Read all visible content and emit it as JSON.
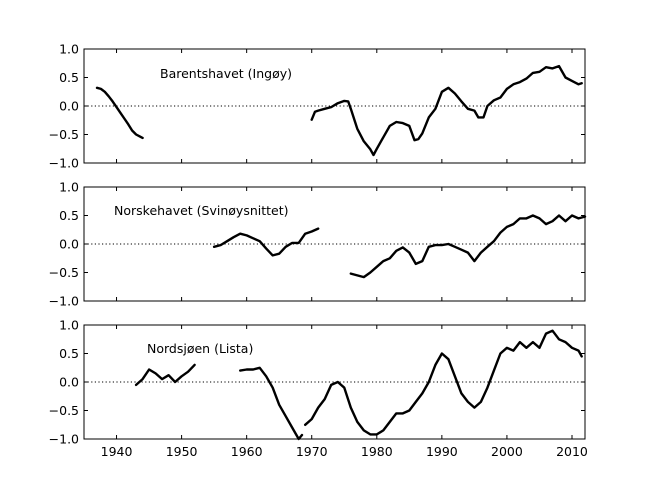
{
  "chart_data": [
    {
      "type": "line",
      "title": "",
      "annotation": "Barentshavet (Ingøy)",
      "xlabel": "",
      "ylabel": "",
      "xlim": [
        1935,
        2012
      ],
      "ylim": [
        -1.0,
        1.0
      ],
      "yticks": [
        "1.0",
        "0.5",
        "0.0",
        "−0.5",
        "−1.0"
      ],
      "xticks": [],
      "reference_line": 0,
      "series": [
        {
          "segments": [
            [
              [
                1937.0,
                0.32
              ],
              [
                1937.6,
                0.3
              ],
              [
                1938.2,
                0.25
              ],
              [
                1938.8,
                0.17
              ],
              [
                1939.4,
                0.08
              ],
              [
                1940.0,
                -0.02
              ],
              [
                1940.6,
                -0.12
              ],
              [
                1941.2,
                -0.22
              ],
              [
                1941.8,
                -0.32
              ],
              [
                1942.4,
                -0.43
              ],
              [
                1943.0,
                -0.5
              ],
              [
                1943.5,
                -0.53
              ],
              [
                1944.0,
                -0.56
              ]
            ],
            [
              [
                1970.0,
                -0.24
              ],
              [
                1970.5,
                -0.1
              ],
              [
                1971.0,
                -0.08
              ],
              [
                1972.0,
                -0.05
              ],
              [
                1973.0,
                -0.02
              ],
              [
                1974.0,
                0.05
              ],
              [
                1975.0,
                0.09
              ],
              [
                1975.6,
                0.08
              ],
              [
                1976.0,
                -0.05
              ],
              [
                1977.0,
                -0.4
              ],
              [
                1978.0,
                -0.62
              ],
              [
                1979.0,
                -0.76
              ],
              [
                1979.5,
                -0.86
              ],
              [
                1980.0,
                -0.75
              ],
              [
                1981.0,
                -0.55
              ],
              [
                1982.0,
                -0.35
              ],
              [
                1983.0,
                -0.28
              ],
              [
                1984.0,
                -0.3
              ],
              [
                1985.0,
                -0.35
              ],
              [
                1985.8,
                -0.6
              ],
              [
                1986.4,
                -0.58
              ],
              [
                1987.0,
                -0.48
              ],
              [
                1988.0,
                -0.2
              ],
              [
                1989.0,
                -0.05
              ],
              [
                1990.0,
                0.25
              ],
              [
                1991.0,
                0.32
              ],
              [
                1992.0,
                0.22
              ],
              [
                1993.0,
                0.08
              ],
              [
                1994.0,
                -0.05
              ],
              [
                1995.0,
                -0.08
              ],
              [
                1995.6,
                -0.2
              ],
              [
                1996.4,
                -0.2
              ],
              [
                1997.0,
                0.0
              ],
              [
                1998.0,
                0.1
              ],
              [
                1999.0,
                0.15
              ],
              [
                2000.0,
                0.3
              ],
              [
                2001.0,
                0.38
              ],
              [
                2002.0,
                0.42
              ],
              [
                2003.0,
                0.48
              ],
              [
                2004.0,
                0.58
              ],
              [
                2005.0,
                0.6
              ],
              [
                2006.0,
                0.68
              ],
              [
                2007.0,
                0.66
              ],
              [
                2008.0,
                0.7
              ],
              [
                2009.0,
                0.5
              ],
              [
                2010.0,
                0.44
              ],
              [
                2011.0,
                0.38
              ],
              [
                2011.5,
                0.4
              ]
            ]
          ]
        }
      ]
    },
    {
      "type": "line",
      "title": "",
      "annotation": "Norskehavet (Svinøysnittet)",
      "xlabel": "",
      "ylabel": "",
      "xlim": [
        1935,
        2012
      ],
      "ylim": [
        -1.0,
        1.0
      ],
      "yticks": [
        "1.0",
        "0.5",
        "0.0",
        "−0.5",
        "−1.0"
      ],
      "xticks": [],
      "reference_line": 0,
      "series": [
        {
          "segments": [
            [
              [
                1955.0,
                -0.05
              ],
              [
                1956.0,
                -0.02
              ],
              [
                1957.0,
                0.05
              ],
              [
                1958.0,
                0.12
              ],
              [
                1959.0,
                0.18
              ],
              [
                1960.0,
                0.15
              ],
              [
                1961.0,
                0.1
              ],
              [
                1962.0,
                0.05
              ],
              [
                1963.0,
                -0.08
              ],
              [
                1964.0,
                -0.2
              ],
              [
                1965.0,
                -0.17
              ],
              [
                1966.0,
                -0.05
              ],
              [
                1967.0,
                0.02
              ],
              [
                1968.0,
                0.02
              ],
              [
                1969.0,
                0.18
              ],
              [
                1970.0,
                0.22
              ],
              [
                1971.0,
                0.27
              ]
            ],
            [
              [
                1976.0,
                -0.52
              ],
              [
                1977.0,
                -0.55
              ],
              [
                1978.0,
                -0.58
              ],
              [
                1979.0,
                -0.5
              ],
              [
                1980.0,
                -0.4
              ],
              [
                1981.0,
                -0.3
              ],
              [
                1982.0,
                -0.25
              ],
              [
                1983.0,
                -0.12
              ],
              [
                1984.0,
                -0.06
              ],
              [
                1985.0,
                -0.15
              ],
              [
                1986.0,
                -0.35
              ],
              [
                1987.0,
                -0.3
              ],
              [
                1988.0,
                -0.05
              ],
              [
                1989.0,
                -0.02
              ],
              [
                1990.0,
                -0.02
              ],
              [
                1991.0,
                0.0
              ],
              [
                1992.0,
                -0.05
              ],
              [
                1993.0,
                -0.1
              ],
              [
                1994.0,
                -0.15
              ],
              [
                1995.0,
                -0.3
              ],
              [
                1996.0,
                -0.15
              ],
              [
                1997.0,
                -0.05
              ],
              [
                1998.0,
                0.05
              ],
              [
                1999.0,
                0.2
              ],
              [
                2000.0,
                0.3
              ],
              [
                2001.0,
                0.35
              ],
              [
                2002.0,
                0.45
              ],
              [
                2003.0,
                0.45
              ],
              [
                2004.0,
                0.5
              ],
              [
                2005.0,
                0.45
              ],
              [
                2006.0,
                0.35
              ],
              [
                2007.0,
                0.4
              ],
              [
                2008.0,
                0.5
              ],
              [
                2009.0,
                0.4
              ],
              [
                2010.0,
                0.5
              ],
              [
                2011.0,
                0.45
              ],
              [
                2012.0,
                0.48
              ]
            ]
          ]
        }
      ]
    },
    {
      "type": "line",
      "title": "",
      "annotation": "Nordsjøen (Lista)",
      "xlabel": "",
      "ylabel": "",
      "xlim": [
        1935,
        2012
      ],
      "ylim": [
        -1.0,
        1.0
      ],
      "yticks": [
        "1.0",
        "0.5",
        "0.0",
        "−0.5",
        "−1.0"
      ],
      "xticks": [
        "1940",
        "1950",
        "1960",
        "1970",
        "1980",
        "1990",
        "2000",
        "2010"
      ],
      "reference_line": 0,
      "series": [
        {
          "segments": [
            [
              [
                1943.0,
                -0.05
              ],
              [
                1944.0,
                0.05
              ],
              [
                1945.0,
                0.22
              ],
              [
                1946.0,
                0.15
              ],
              [
                1947.0,
                0.05
              ],
              [
                1948.0,
                0.12
              ],
              [
                1949.0,
                0.0
              ],
              [
                1950.0,
                0.1
              ],
              [
                1951.0,
                0.18
              ],
              [
                1952.0,
                0.3
              ]
            ],
            [
              [
                1959.0,
                0.2
              ],
              [
                1960.0,
                0.22
              ],
              [
                1961.0,
                0.22
              ],
              [
                1962.0,
                0.25
              ],
              [
                1963.0,
                0.1
              ],
              [
                1964.0,
                -0.1
              ],
              [
                1965.0,
                -0.4
              ],
              [
                1966.0,
                -0.6
              ],
              [
                1967.0,
                -0.8
              ],
              [
                1968.0,
                -1.0
              ],
              [
                1968.5,
                -0.93
              ]
            ],
            [
              [
                1969.0,
                -0.75
              ],
              [
                1970.0,
                -0.65
              ],
              [
                1971.0,
                -0.45
              ],
              [
                1972.0,
                -0.3
              ],
              [
                1973.0,
                -0.05
              ],
              [
                1974.0,
                0.0
              ],
              [
                1975.0,
                -0.1
              ],
              [
                1976.0,
                -0.45
              ],
              [
                1977.0,
                -0.7
              ],
              [
                1978.0,
                -0.85
              ],
              [
                1979.0,
                -0.92
              ],
              [
                1980.0,
                -0.92
              ],
              [
                1981.0,
                -0.85
              ],
              [
                1982.0,
                -0.7
              ],
              [
                1983.0,
                -0.55
              ],
              [
                1984.0,
                -0.55
              ],
              [
                1985.0,
                -0.5
              ],
              [
                1986.0,
                -0.35
              ],
              [
                1987.0,
                -0.2
              ],
              [
                1988.0,
                0.0
              ],
              [
                1989.0,
                0.3
              ],
              [
                1990.0,
                0.5
              ],
              [
                1991.0,
                0.4
              ],
              [
                1992.0,
                0.1
              ],
              [
                1993.0,
                -0.2
              ],
              [
                1994.0,
                -0.35
              ],
              [
                1995.0,
                -0.45
              ],
              [
                1996.0,
                -0.35
              ],
              [
                1997.0,
                -0.1
              ],
              [
                1998.0,
                0.2
              ],
              [
                1999.0,
                0.5
              ],
              [
                2000.0,
                0.6
              ],
              [
                2001.0,
                0.55
              ],
              [
                2002.0,
                0.7
              ],
              [
                2003.0,
                0.6
              ],
              [
                2004.0,
                0.7
              ],
              [
                2005.0,
                0.6
              ],
              [
                2006.0,
                0.85
              ],
              [
                2007.0,
                0.9
              ],
              [
                2008.0,
                0.75
              ],
              [
                2009.0,
                0.7
              ],
              [
                2010.0,
                0.6
              ],
              [
                2011.0,
                0.55
              ],
              [
                2011.5,
                0.45
              ]
            ]
          ]
        }
      ]
    }
  ]
}
